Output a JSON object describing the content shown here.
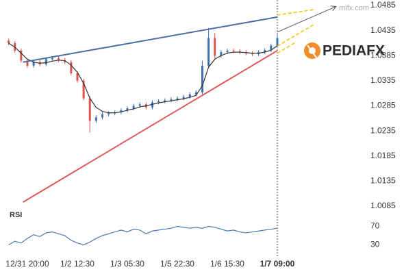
{
  "chart_data": {
    "type": "candlestick",
    "categories": [
      null,
      null,
      null,
      "12/31 20:00",
      null,
      null,
      null,
      null,
      null,
      null,
      null,
      "1/2 12:30",
      null,
      null,
      null,
      null,
      null,
      null,
      null,
      "1/3 05:30",
      null,
      null,
      null,
      null,
      null,
      null,
      null,
      "1/5 22:30",
      null,
      null,
      null,
      null,
      null,
      null,
      null,
      "1/6 15:30",
      null,
      null,
      null,
      null,
      null,
      null,
      null,
      "1/7 09:00"
    ],
    "open": [
      1.0415,
      1.041,
      1.0395,
      1.0375,
      1.0365,
      1.0372,
      1.0368,
      1.0378,
      1.038,
      1.0376,
      1.0372,
      1.035,
      1.0335,
      1.03,
      1.0255,
      1.0262,
      1.0268,
      1.027,
      1.0272,
      1.0276,
      1.028,
      1.0285,
      1.0288,
      1.0282,
      1.0292,
      1.0294,
      1.0296,
      1.0298,
      1.03,
      1.0303,
      1.0308,
      1.0312,
      1.0365,
      1.042,
      1.0385,
      1.0392,
      1.0395,
      1.0394,
      1.0392,
      1.039,
      1.0388,
      1.0392,
      1.0396,
      1.0405
    ],
    "high": [
      1.0419,
      1.0414,
      1.0399,
      1.0379,
      1.0376,
      1.0376,
      1.0382,
      1.0384,
      1.0384,
      1.038,
      1.0376,
      1.0354,
      1.0339,
      1.0304,
      1.0266,
      1.0272,
      1.0274,
      1.0276,
      1.028,
      1.0284,
      1.0289,
      1.0292,
      1.0292,
      1.0296,
      1.0298,
      1.03,
      1.0302,
      1.0304,
      1.0307,
      1.0312,
      1.0316,
      1.0375,
      1.044,
      1.043,
      1.0396,
      1.0399,
      1.0399,
      1.0398,
      1.0396,
      1.0394,
      1.0396,
      1.04,
      1.0409,
      1.0428
    ],
    "low": [
      1.0406,
      1.0391,
      1.0371,
      1.0361,
      1.0361,
      1.0364,
      1.0364,
      1.0374,
      1.0372,
      1.0368,
      1.0346,
      1.0331,
      1.0296,
      1.0232,
      1.0251,
      1.0258,
      1.0264,
      1.0266,
      1.0268,
      1.0272,
      1.0276,
      1.0281,
      1.0278,
      1.0278,
      1.0288,
      1.029,
      1.0292,
      1.0294,
      1.0296,
      1.0299,
      1.0304,
      1.0308,
      1.0361,
      1.0378,
      1.0381,
      1.0388,
      1.039,
      1.0388,
      1.0386,
      1.0384,
      1.0384,
      1.0388,
      1.0392,
      1.0401
    ],
    "close": [
      1.041,
      1.0395,
      1.0375,
      1.0365,
      1.0372,
      1.0368,
      1.0378,
      1.038,
      1.0376,
      1.0372,
      1.035,
      1.0335,
      1.03,
      1.0255,
      1.0262,
      1.0268,
      1.027,
      1.0272,
      1.0276,
      1.028,
      1.0285,
      1.0288,
      1.0282,
      1.0292,
      1.0294,
      1.0296,
      1.0298,
      1.03,
      1.0303,
      1.0308,
      1.0312,
      1.0365,
      1.042,
      1.0385,
      1.0392,
      1.0395,
      1.0394,
      1.0392,
      1.039,
      1.0388,
      1.0392,
      1.0396,
      1.0405,
      1.042
    ],
    "up_color": "#3b6fb6",
    "down_color": "#d9534f",
    "ma": {
      "color": "#333333",
      "values": [
        1.041,
        1.0402,
        1.039,
        1.0378,
        1.0372,
        1.037,
        1.0371,
        1.0374,
        1.0376,
        1.0375,
        1.0366,
        1.0352,
        1.033,
        1.03,
        1.0282,
        1.0274,
        1.0271,
        1.0271,
        1.0273,
        1.0276,
        1.0279,
        1.0283,
        1.0285,
        1.0288,
        1.0291,
        1.0293,
        1.0295,
        1.0297,
        1.0299,
        1.0302,
        1.0306,
        1.0325,
        1.0362,
        1.0378,
        1.0385,
        1.039,
        1.0392,
        1.0392,
        1.0391,
        1.039,
        1.039,
        1.0392,
        1.0396,
        1.0405
      ]
    },
    "ylim": [
      1.0085,
      1.0485
    ],
    "yticks": [
      1.0485,
      1.0435,
      1.0385,
      1.0335,
      1.0285,
      1.0235,
      1.0185,
      1.0135,
      1.0085
    ],
    "trendlines": [
      {
        "color": "#4a6fa5",
        "x": [
          2.3,
          43
        ],
        "y": [
          1.0372,
          1.0462
        ]
      },
      {
        "color": "#e15759",
        "x": [
          2.3,
          43
        ],
        "y": [
          1.0093,
          1.0395
        ]
      }
    ],
    "projections": [
      {
        "color": "#f2c200",
        "x": [
          43,
          49
        ],
        "y": [
          1.0466,
          1.0477
        ]
      },
      {
        "color": "#f2c200",
        "x": [
          43,
          49
        ],
        "y": [
          1.0404,
          1.0448
        ]
      },
      {
        "color": "#f2c200",
        "x": [
          43,
          46
        ],
        "y": [
          1.039,
          1.0412
        ]
      }
    ],
    "arrow": {
      "color": "#555555",
      "x": [
        43,
        52.4
      ],
      "y": [
        1.0432,
        1.0483
      ]
    },
    "rsi": {
      "label": "RSI",
      "color": "#4a78b5",
      "ylim": [
        10,
        90
      ],
      "yticks": [
        70,
        30
      ],
      "values": [
        30,
        38,
        34,
        44,
        52,
        48,
        56,
        58,
        54,
        50,
        40,
        34,
        30,
        36,
        44,
        50,
        54,
        58,
        62,
        58,
        64,
        62,
        54,
        60,
        62,
        64,
        66,
        70,
        68,
        66,
        68,
        66,
        70,
        68,
        64,
        60,
        62,
        58,
        56,
        58,
        60,
        62,
        64,
        66
      ]
    },
    "watermark": "mifx.com",
    "logo": "PEDIAFX"
  }
}
